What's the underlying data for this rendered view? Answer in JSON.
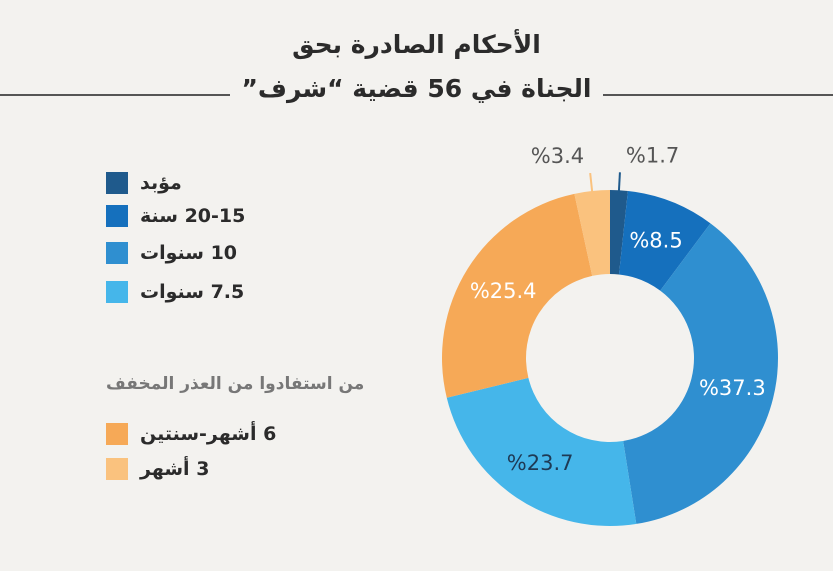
{
  "title": {
    "line1": "الأحكام الصادرة بحق",
    "line2": "الجناة في 56 قضية “شرف”"
  },
  "legend_primary": [
    {
      "label": "مؤبد",
      "color": "#1f5a8c"
    },
    {
      "label": "20-15 سنة",
      "color": "#1570bd"
    },
    {
      "label": "10 سنوات",
      "color": "#2f8fd0"
    },
    {
      "label": "7.5 سنوات",
      "color": "#45b6ea"
    }
  ],
  "legend_secondary_title": "من استفادوا من العذر المخفف",
  "legend_secondary": [
    {
      "label": "6 أشهر-سنتين",
      "color": "#f6a957"
    },
    {
      "label": "3 أشهر",
      "color": "#fac27e"
    }
  ],
  "chart_data": {
    "type": "pie",
    "donut": true,
    "slices": [
      {
        "name": "مؤبد",
        "value": 1.7,
        "label": "%1.7",
        "color": "#1f5a8c"
      },
      {
        "name": "20-15 سنة",
        "value": 8.5,
        "label": "%8.5",
        "color": "#1570bd"
      },
      {
        "name": "10 سنوات",
        "value": 37.3,
        "label": "%37.3",
        "color": "#2f8fd0"
      },
      {
        "name": "7.5 سنوات",
        "value": 23.7,
        "label": "%23.7",
        "color": "#45b6ea"
      },
      {
        "name": "6 أشهر-سنتين",
        "value": 25.4,
        "label": "%25.4",
        "color": "#f6a957"
      },
      {
        "name": "3 أشهر",
        "value": 3.4,
        "label": "%3.4",
        "color": "#fac27e"
      }
    ]
  }
}
